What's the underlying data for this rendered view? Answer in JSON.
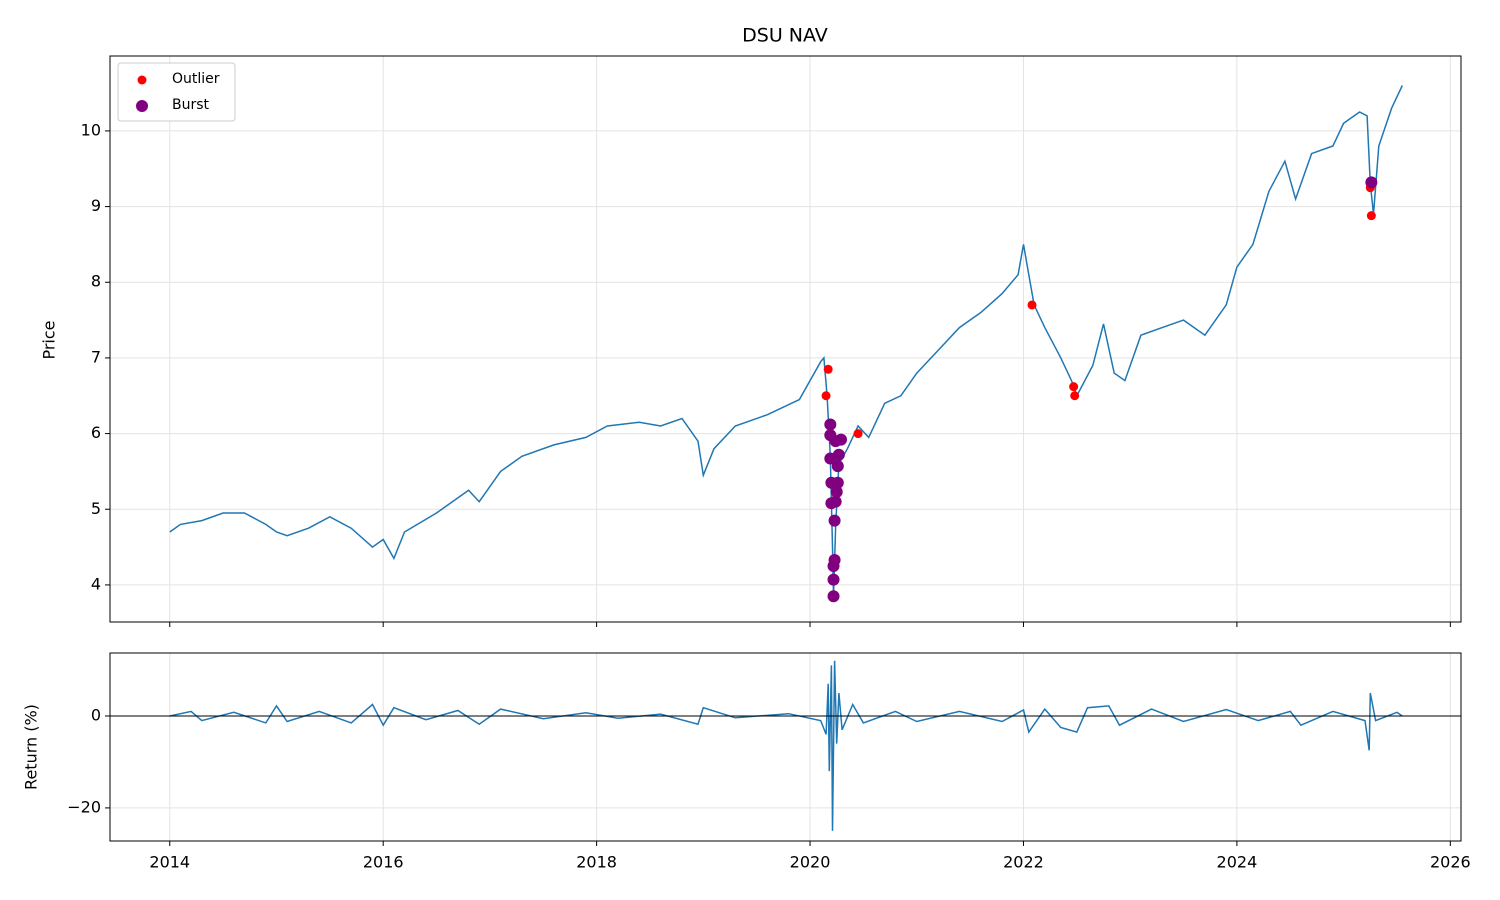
{
  "chart_data": [
    {
      "type": "line",
      "title": "DSU NAV",
      "y_label": "Price",
      "grid": true,
      "xtick_labels": false,
      "legend": "upper left",
      "xlim": [
        2013.44,
        2026.1
      ],
      "ylim": [
        3.51,
        10.99
      ],
      "xticks": [
        2014,
        2016,
        2018,
        2020,
        2022,
        2024,
        2026
      ],
      "yticks": [
        4,
        5,
        6,
        7,
        8,
        9,
        10
      ],
      "line": {
        "color": "#1f77b4",
        "x": [
          2014.0,
          2014.1,
          2014.3,
          2014.5,
          2014.7,
          2014.9,
          2015.0,
          2015.1,
          2015.3,
          2015.5,
          2015.7,
          2015.9,
          2016.0,
          2016.1,
          2016.2,
          2016.5,
          2016.8,
          2016.9,
          2017.1,
          2017.3,
          2017.6,
          2017.9,
          2018.1,
          2018.4,
          2018.6,
          2018.8,
          2018.95,
          2019.0,
          2019.1,
          2019.3,
          2019.6,
          2019.9,
          2020.1,
          2020.13,
          2020.16,
          2020.19,
          2020.21,
          2020.22,
          2020.24,
          2020.27,
          2020.35,
          2020.45,
          2020.55,
          2020.7,
          2020.85,
          2021.0,
          2021.2,
          2021.4,
          2021.6,
          2021.8,
          2021.95,
          2022.0,
          2022.05,
          2022.1,
          2022.2,
          2022.35,
          2022.45,
          2022.5,
          2022.65,
          2022.75,
          2022.85,
          2022.95,
          2023.1,
          2023.3,
          2023.5,
          2023.7,
          2023.9,
          2024.0,
          2024.15,
          2024.3,
          2024.45,
          2024.55,
          2024.7,
          2024.9,
          2025.0,
          2025.15,
          2025.22,
          2025.25,
          2025.28,
          2025.33,
          2025.45,
          2025.55
        ],
        "values": [
          4.7,
          4.8,
          4.85,
          4.95,
          4.95,
          4.8,
          4.7,
          4.65,
          4.75,
          4.9,
          4.75,
          4.5,
          4.6,
          4.35,
          4.7,
          4.95,
          5.25,
          5.1,
          5.5,
          5.7,
          5.85,
          5.95,
          6.1,
          6.15,
          6.1,
          6.2,
          5.9,
          5.45,
          5.8,
          6.1,
          6.25,
          6.45,
          6.95,
          7.0,
          6.5,
          5.7,
          4.5,
          3.85,
          4.8,
          5.6,
          5.8,
          6.1,
          5.95,
          6.4,
          6.5,
          6.8,
          7.1,
          7.4,
          7.6,
          7.85,
          8.1,
          8.5,
          8.1,
          7.7,
          7.4,
          7.0,
          6.7,
          6.5,
          6.9,
          7.45,
          6.8,
          6.7,
          7.3,
          7.4,
          7.5,
          7.3,
          7.7,
          8.2,
          8.5,
          9.2,
          9.6,
          9.1,
          9.7,
          9.8,
          10.1,
          10.25,
          10.2,
          9.3,
          8.9,
          9.8,
          10.3,
          10.6
        ]
      },
      "series": [
        {
          "name": "Outlier",
          "color": "red",
          "x": [
            2020.17,
            2020.15,
            2020.45,
            2022.08,
            2022.47,
            2022.48,
            2025.25,
            2025.26
          ],
          "values": [
            6.85,
            6.5,
            6.0,
            7.7,
            6.62,
            6.5,
            9.25,
            8.88
          ]
        },
        {
          "name": "Burst",
          "color": "purple",
          "x": [
            2020.19,
            2020.19,
            2020.19,
            2020.2,
            2020.2,
            2020.22,
            2020.22,
            2020.22,
            2020.23,
            2020.23,
            2020.24,
            2020.25,
            2020.26,
            2020.26,
            2020.27,
            2020.29,
            2020.24,
            2025.26
          ],
          "values": [
            6.12,
            5.98,
            5.67,
            5.35,
            5.08,
            3.85,
            4.07,
            4.25,
            4.33,
            4.85,
            5.1,
            5.23,
            5.35,
            5.57,
            5.72,
            5.92,
            5.9,
            9.32
          ]
        }
      ]
    },
    {
      "type": "line",
      "y_label": "Return (%)",
      "grid": true,
      "xtick_labels": true,
      "xlim": [
        2013.44,
        2026.1
      ],
      "ylim": [
        -27.2,
        13.7
      ],
      "xticks": [
        2014,
        2016,
        2018,
        2020,
        2022,
        2024,
        2026
      ],
      "yticks": [
        {
          "value": -20,
          "label": "−20"
        },
        0
      ],
      "hline": {
        "value": 0,
        "color": "#000"
      },
      "line": {
        "color": "#1f77b4",
        "x": [
          2014.0,
          2014.2,
          2014.3,
          2014.6,
          2014.9,
          2015.0,
          2015.1,
          2015.4,
          2015.7,
          2015.9,
          2016.0,
          2016.1,
          2016.4,
          2016.7,
          2016.9,
          2017.1,
          2017.5,
          2017.9,
          2018.2,
          2018.6,
          2018.95,
          2019.0,
          2019.3,
          2019.8,
          2020.1,
          2020.15,
          2020.17,
          2020.18,
          2020.2,
          2020.21,
          2020.23,
          2020.25,
          2020.27,
          2020.3,
          2020.4,
          2020.5,
          2020.8,
          2021.0,
          2021.4,
          2021.8,
          2022.0,
          2022.05,
          2022.2,
          2022.35,
          2022.5,
          2022.6,
          2022.8,
          2022.9,
          2023.2,
          2023.5,
          2023.9,
          2024.2,
          2024.5,
          2024.6,
          2024.9,
          2025.2,
          2025.24,
          2025.25,
          2025.3,
          2025.5,
          2025.55
        ],
        "values": [
          0,
          1,
          -1,
          0.8,
          -1.5,
          2.2,
          -1.2,
          1,
          -1.5,
          2.5,
          -2,
          1.8,
          -0.8,
          1.2,
          -1.8,
          1.5,
          -0.6,
          0.7,
          -0.5,
          0.4,
          -1.8,
          1.8,
          -0.4,
          0.5,
          -1,
          -4,
          7,
          -12,
          11,
          -25,
          12,
          -6,
          5,
          -3,
          2.5,
          -1.5,
          1,
          -1.2,
          1,
          -1.2,
          1.3,
          -3.5,
          1.5,
          -2.5,
          -3.5,
          1.8,
          2.2,
          -2,
          1.5,
          -1.2,
          1.4,
          -1,
          1,
          -2,
          1,
          -1,
          -7.5,
          5,
          -1,
          0.8,
          0
        ]
      }
    }
  ]
}
